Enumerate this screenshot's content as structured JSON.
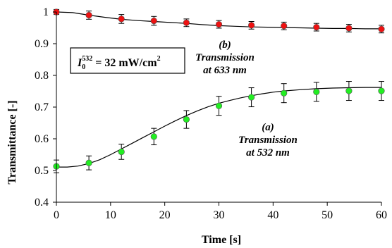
{
  "chart_data": {
    "type": "scatter",
    "xlabel": "Time [s]",
    "ylabel": "Transmittance [-]",
    "xlim": [
      0,
      60
    ],
    "ylim": [
      0.4,
      1.0
    ],
    "x_ticks": [
      "0",
      "10",
      "20",
      "30",
      "40",
      "50",
      "60"
    ],
    "y_ticks": [
      "0.4",
      "0.5",
      "0.6",
      "0.7",
      "0.8",
      "0.9",
      "1"
    ],
    "x_tick_values": [
      0,
      10,
      20,
      30,
      40,
      50,
      60
    ],
    "y_tick_values": [
      0.4,
      0.5,
      0.6,
      0.7,
      0.8,
      0.9,
      1.0
    ],
    "grid": false,
    "series": [
      {
        "label_letter": "(b)",
        "label_line1": "Transmission",
        "label_line2": "at 633 nm",
        "color": "#ee1111",
        "x": [
          0,
          6,
          12,
          18,
          24,
          30,
          36,
          42,
          48,
          54,
          60
        ],
        "values": [
          1.0,
          0.99,
          0.978,
          0.972,
          0.966,
          0.961,
          0.958,
          0.956,
          0.952,
          0.949,
          0.946
        ],
        "errors": [
          0.008,
          0.013,
          0.014,
          0.014,
          0.012,
          0.012,
          0.012,
          0.012,
          0.012,
          0.012,
          0.012
        ],
        "fit": [
          [
            0,
            1.0
          ],
          [
            3,
            0.998
          ],
          [
            6,
            0.99
          ],
          [
            9,
            0.983
          ],
          [
            12,
            0.977
          ],
          [
            15,
            0.973
          ],
          [
            18,
            0.97
          ],
          [
            21,
            0.967
          ],
          [
            24,
            0.964
          ],
          [
            27,
            0.96
          ],
          [
            30,
            0.957
          ],
          [
            33,
            0.955
          ],
          [
            36,
            0.953
          ],
          [
            39,
            0.952
          ],
          [
            42,
            0.951
          ],
          [
            45,
            0.95
          ],
          [
            48,
            0.949
          ],
          [
            51,
            0.948
          ],
          [
            54,
            0.948
          ],
          [
            57,
            0.947
          ],
          [
            60,
            0.947
          ]
        ]
      },
      {
        "label_letter": "(a)",
        "label_line1": "Transmission",
        "label_line2": "at 532 nm",
        "color": "#22ee22",
        "x": [
          0,
          6,
          12,
          18,
          24,
          30,
          36,
          42,
          48,
          54,
          60
        ],
        "values": [
          0.513,
          0.524,
          0.559,
          0.607,
          0.661,
          0.704,
          0.731,
          0.744,
          0.748,
          0.751,
          0.751
        ],
        "errors": [
          0.02,
          0.022,
          0.024,
          0.026,
          0.028,
          0.03,
          0.03,
          0.03,
          0.03,
          0.03,
          0.03
        ],
        "fit": [
          [
            0,
            0.511
          ],
          [
            2,
            0.511
          ],
          [
            4,
            0.514
          ],
          [
            6,
            0.522
          ],
          [
            8,
            0.534
          ],
          [
            10,
            0.55
          ],
          [
            12,
            0.568
          ],
          [
            14,
            0.586
          ],
          [
            16,
            0.604
          ],
          [
            18,
            0.622
          ],
          [
            20,
            0.64
          ],
          [
            22,
            0.657
          ],
          [
            24,
            0.673
          ],
          [
            26,
            0.688
          ],
          [
            28,
            0.701
          ],
          [
            30,
            0.712
          ],
          [
            32,
            0.721
          ],
          [
            34,
            0.729
          ],
          [
            36,
            0.736
          ],
          [
            38,
            0.742
          ],
          [
            40,
            0.747
          ],
          [
            42,
            0.751
          ],
          [
            45,
            0.755
          ],
          [
            48,
            0.758
          ],
          [
            51,
            0.76
          ],
          [
            54,
            0.761
          ],
          [
            57,
            0.762
          ],
          [
            60,
            0.762
          ]
        ]
      }
    ],
    "intensity_box": {
      "symbol": "I",
      "subscript": "0",
      "superscript": "532",
      "value_text": " = 32 mW/cm",
      "unit_exp": "2"
    }
  }
}
